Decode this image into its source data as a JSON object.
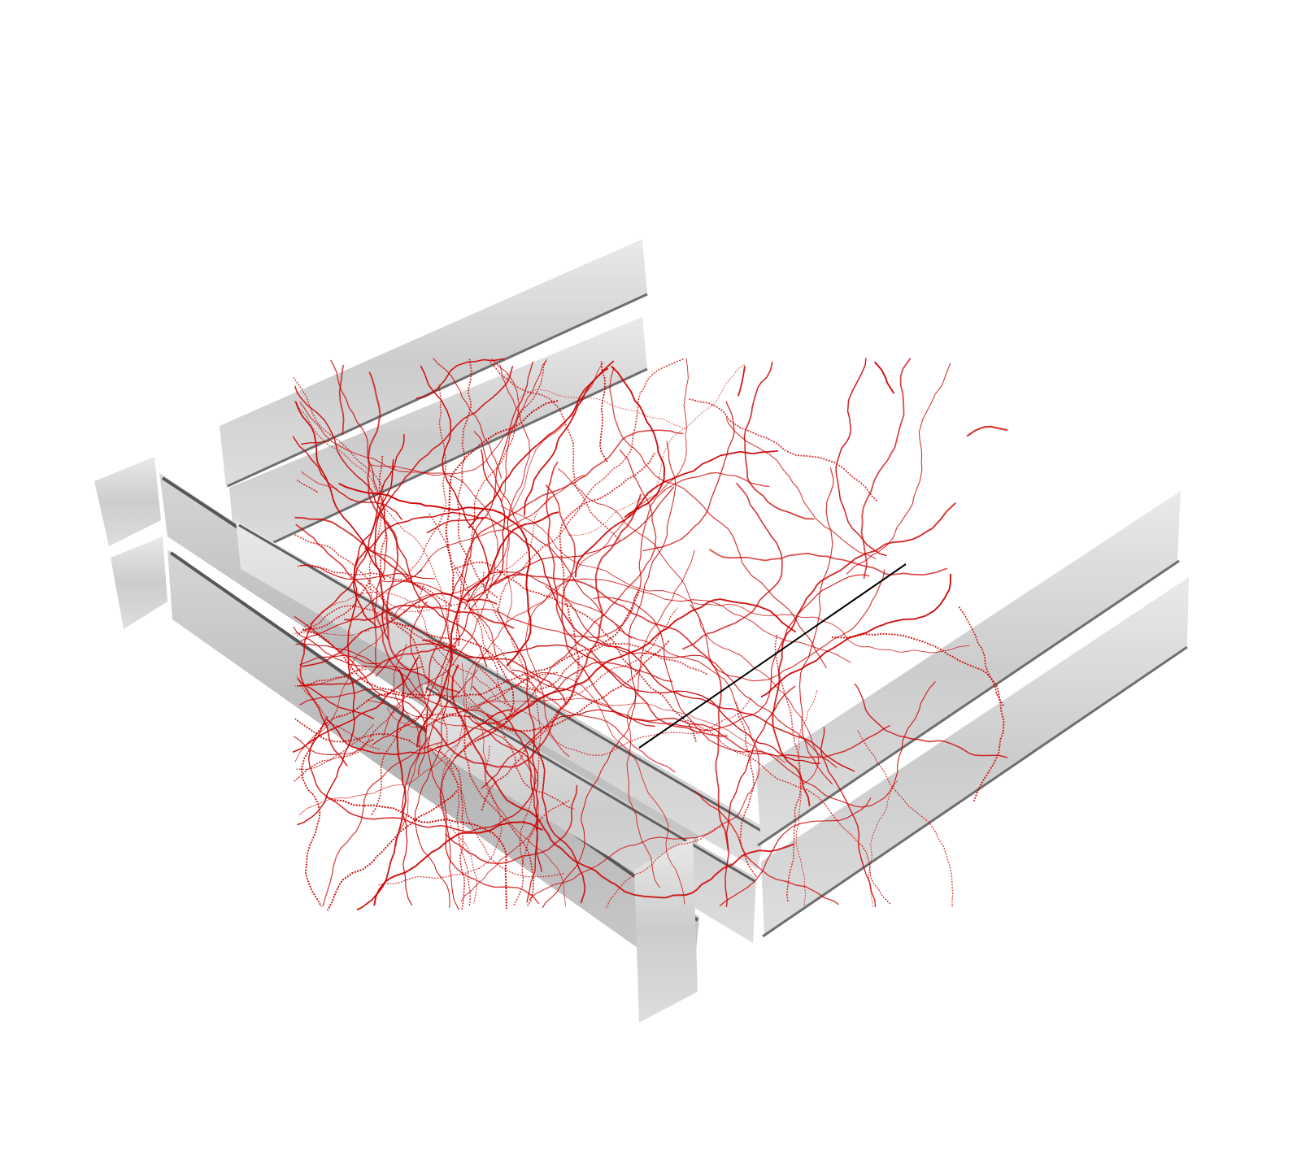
{
  "render": {
    "background_color": "#ffffff",
    "neurite_color": "#cc0000",
    "scale_bar_color": "#000000",
    "slab_face_color": "#c9c9c9",
    "slab_edge_color": "#3a3a3a"
  },
  "elements": {
    "slabs": "translucent-gray-beams",
    "trace": "neuron-reconstruction",
    "scale": "scale-bar"
  }
}
